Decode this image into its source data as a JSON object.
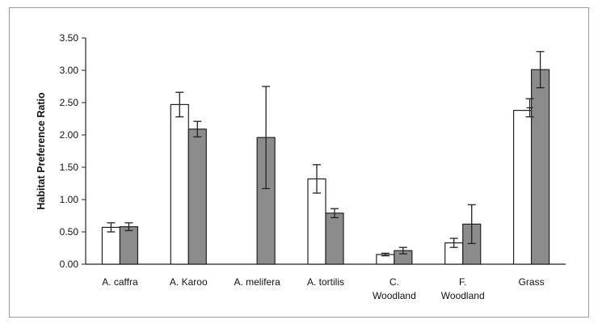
{
  "chart_data": {
    "type": "bar",
    "ylabel": "Habitat Preference Ratio",
    "xlabel": "",
    "ylim": [
      0,
      3.5
    ],
    "yticks": [
      "0.00",
      "0.50",
      "1.00",
      "1.50",
      "2.00",
      "2.50",
      "3.00",
      "3.50"
    ],
    "categories": [
      [
        "A. caffra"
      ],
      [
        "A. Karoo"
      ],
      [
        "A. melifera"
      ],
      [
        "A. tortilis"
      ],
      [
        "C.",
        "Woodland"
      ],
      [
        "F.",
        "Woodland"
      ],
      [
        "Grass"
      ]
    ],
    "series": [
      {
        "color": "#ffffff",
        "values": [
          0.57,
          2.47,
          0.0,
          1.32,
          0.15,
          0.33,
          2.38
        ],
        "errors": [
          0.07,
          0.19,
          0.0,
          0.22,
          0.02,
          0.07,
          0.0
        ]
      },
      {
        "color": "#8c8c8c",
        "values": [
          0.58,
          2.09,
          1.96,
          0.79,
          0.21,
          0.62,
          3.01
        ],
        "errors": [
          0.06,
          0.12,
          0.79,
          0.07,
          0.05,
          0.3,
          0.28
        ]
      }
    ],
    "secondary_markers": [
      {
        "category_index": 6,
        "series_index": 0,
        "value": 2.42,
        "error": 0.14
      }
    ],
    "grid": false,
    "legend": "none"
  }
}
